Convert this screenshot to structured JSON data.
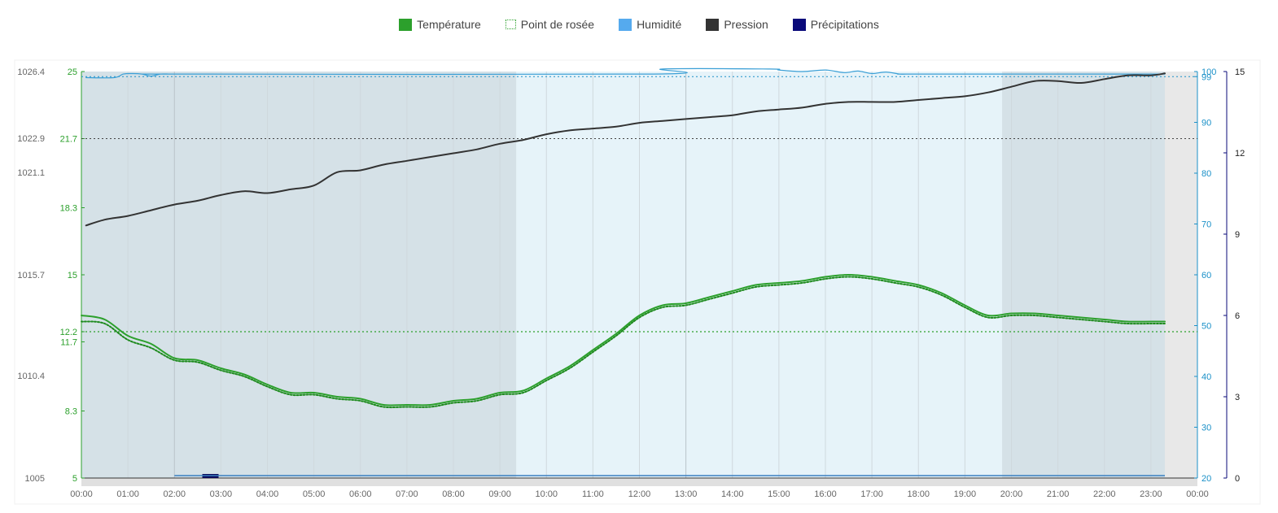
{
  "chart_data": {
    "type": "line",
    "legend": [
      {
        "label": "Température",
        "color": "#2ca02c",
        "style": "solid"
      },
      {
        "label": "Point de rosée",
        "color": "#2ca02c",
        "style": "dotted"
      },
      {
        "label": "Humidité",
        "color": "#55aaee",
        "style": "solid"
      },
      {
        "label": "Pression",
        "color": "#333333",
        "style": "solid"
      },
      {
        "label": "Précipitations",
        "color": "#0a0a7a",
        "style": "solid"
      }
    ],
    "x_ticks": [
      "00:00",
      "01:00",
      "02:00",
      "03:00",
      "04:00",
      "05:00",
      "06:00",
      "07:00",
      "08:00",
      "09:00",
      "10:00",
      "11:00",
      "12:00",
      "13:00",
      "14:00",
      "15:00",
      "16:00",
      "17:00",
      "18:00",
      "19:00",
      "20:00",
      "21:00",
      "22:00",
      "23:00",
      "00:00"
    ],
    "axes": {
      "pressure": {
        "ticks": [
          "1005",
          "1010.4",
          "1015.7",
          "1021.1",
          "1022.9",
          "1026.4"
        ],
        "range": [
          1005,
          1026.4
        ]
      },
      "temperature": {
        "ticks": [
          "5",
          "8.3",
          "11.7",
          "12.2",
          "15",
          "18.3",
          "21.7",
          "25"
        ],
        "range": [
          5,
          25
        ]
      },
      "humidity": {
        "ticks": [
          "20",
          "30",
          "40",
          "50",
          "60",
          "70",
          "80",
          "90",
          "99",
          "100"
        ],
        "range": [
          20,
          100
        ]
      },
      "precipitation": {
        "ticks": [
          "0",
          "3",
          "6",
          "9",
          "12",
          "15"
        ],
        "range": [
          0,
          15
        ]
      }
    },
    "reference_lines": {
      "temperature_max": 21.7,
      "dew_point_ref": 12.2,
      "humidity_max": 99
    },
    "night_shading": {
      "first_hours": [
        0,
        9.35
      ],
      "second_hours": [
        19.8,
        23.3
      ]
    },
    "x_range_hours": [
      0,
      24
    ],
    "data_end_hours": 23.3,
    "series": [
      {
        "name": "Température",
        "axis": "temperature",
        "hours": [
          0,
          0.5,
          1,
          1.5,
          2,
          2.5,
          3,
          3.5,
          4,
          4.5,
          5,
          5.5,
          6,
          6.5,
          7,
          7.5,
          8,
          8.5,
          9,
          9.5,
          10,
          10.5,
          11,
          11.5,
          12,
          12.5,
          13,
          13.5,
          14,
          14.5,
          15,
          15.5,
          16,
          16.5,
          17,
          17.5,
          18,
          18.5,
          19,
          19.5,
          20,
          20.5,
          21,
          21.5,
          22,
          22.5,
          23,
          23.3
        ],
        "values": [
          13.0,
          12.8,
          12.0,
          11.6,
          10.9,
          10.8,
          10.4,
          10.1,
          9.6,
          9.2,
          9.2,
          9.0,
          8.9,
          8.6,
          8.6,
          8.6,
          8.8,
          8.9,
          9.2,
          9.3,
          9.9,
          10.5,
          11.3,
          12.1,
          13.0,
          13.5,
          13.6,
          13.9,
          14.2,
          14.5,
          14.6,
          14.7,
          14.9,
          15.0,
          14.9,
          14.7,
          14.5,
          14.1,
          13.5,
          13.0,
          13.1,
          13.1,
          13.0,
          12.9,
          12.8,
          12.7,
          12.7,
          12.7
        ]
      },
      {
        "name": "Point de rosée",
        "axis": "temperature",
        "hours": [
          0,
          0.5,
          1,
          1.5,
          2,
          2.5,
          3,
          3.5,
          4,
          4.5,
          5,
          5.5,
          6,
          6.5,
          7,
          7.5,
          8,
          8.5,
          9,
          9.5,
          10,
          10.5,
          11,
          11.5,
          12,
          12.5,
          13,
          13.5,
          14,
          14.5,
          15,
          15.5,
          16,
          16.5,
          17,
          17.5,
          18,
          18.5,
          19,
          19.5,
          20,
          20.5,
          21,
          21.5,
          22,
          22.5,
          23,
          23.3
        ],
        "values": [
          12.7,
          12.6,
          11.8,
          11.4,
          10.8,
          10.7,
          10.3,
          10.0,
          9.5,
          9.1,
          9.1,
          8.9,
          8.8,
          8.5,
          8.5,
          8.5,
          8.7,
          8.8,
          9.1,
          9.2,
          9.8,
          10.4,
          11.2,
          12.0,
          12.9,
          13.4,
          13.5,
          13.8,
          14.1,
          14.4,
          14.5,
          14.6,
          14.8,
          14.9,
          14.8,
          14.6,
          14.4,
          14.0,
          13.4,
          12.9,
          13.0,
          13.0,
          12.9,
          12.8,
          12.7,
          12.6,
          12.6,
          12.6
        ]
      },
      {
        "name": "Humidité",
        "axis": "humidity",
        "hours": [
          0.1,
          0.7,
          0.9,
          1.1,
          1.3,
          1.5,
          1.7,
          1.9,
          2.1,
          12.3,
          12.5,
          14.8,
          15.0,
          15.5,
          16.0,
          16.4,
          16.7,
          17.0,
          17.3,
          17.6,
          17.8,
          18.0,
          23.3
        ],
        "values": [
          98.8,
          98.8,
          99.5,
          99.6,
          99.5,
          99.1,
          99.5,
          99.5,
          99.5,
          99.5,
          100.5,
          100.5,
          100.3,
          100.0,
          100.3,
          99.8,
          100.1,
          99.6,
          99.9,
          99.5,
          99.5,
          99.5,
          99.5
        ]
      },
      {
        "name": "Pression",
        "axis": "pressure",
        "hours": [
          0.1,
          0.5,
          1,
          1.5,
          2,
          2.5,
          3,
          3.5,
          4,
          4.5,
          5,
          5.5,
          6,
          6.5,
          7,
          7.5,
          8,
          8.5,
          9,
          9.5,
          10,
          10.5,
          11,
          11.5,
          12,
          12.5,
          13,
          13.5,
          14,
          14.5,
          15,
          15.5,
          16,
          16.5,
          17,
          17.5,
          18,
          18.5,
          19,
          19.5,
          20,
          20.5,
          21,
          21.5,
          22,
          22.5,
          23,
          23.3
        ],
        "values": [
          1018.3,
          1018.6,
          1018.8,
          1019.1,
          1019.4,
          1019.6,
          1019.9,
          1020.1,
          1020.0,
          1020.2,
          1020.4,
          1021.1,
          1021.2,
          1021.5,
          1021.7,
          1021.9,
          1022.1,
          1022.3,
          1022.6,
          1022.8,
          1023.1,
          1023.3,
          1023.4,
          1023.5,
          1023.7,
          1023.8,
          1023.9,
          1024.0,
          1024.1,
          1024.3,
          1024.4,
          1024.5,
          1024.7,
          1024.8,
          1024.8,
          1024.8,
          1024.9,
          1025.0,
          1025.1,
          1025.3,
          1025.6,
          1025.9,
          1025.9,
          1025.8,
          1026.0,
          1026.2,
          1026.2,
          1026.3
        ]
      },
      {
        "name": "Précipitations",
        "axis": "precipitation",
        "hours": [
          2.6,
          2.95
        ],
        "values": [
          0.15,
          0.15
        ]
      }
    ]
  }
}
